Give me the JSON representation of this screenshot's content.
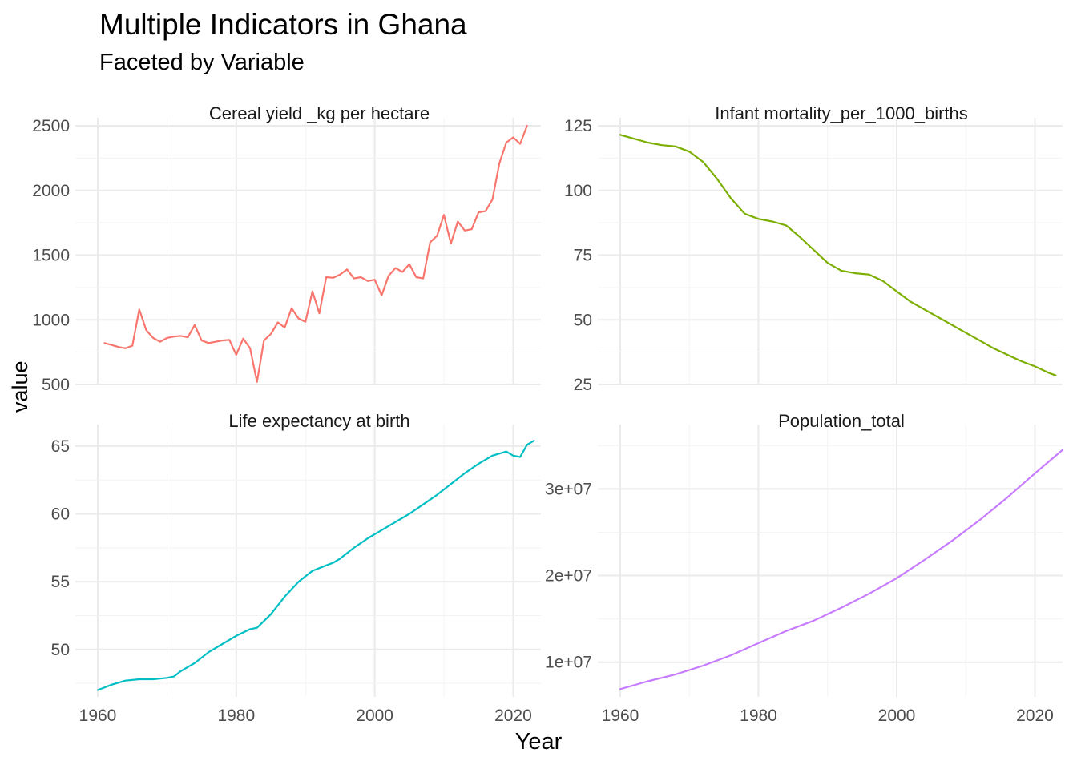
{
  "title": "Multiple Indicators in Ghana",
  "subtitle": "Faceted by Variable",
  "xlabel": "Year",
  "ylabel": "value",
  "chart_data": [
    {
      "type": "line",
      "title": "Cereal yield _kg per hectare",
      "color": "#F8766D",
      "xlim": [
        1960,
        2024
      ],
      "ylim": [
        500,
        2500
      ],
      "xticks": [
        "1960",
        "1980",
        "2000",
        "2020"
      ],
      "yticks": [
        "500",
        "1000",
        "1500",
        "2000",
        "2500"
      ],
      "x": [
        1961,
        1962,
        1963,
        1964,
        1965,
        1966,
        1967,
        1968,
        1969,
        1970,
        1971,
        1972,
        1973,
        1974,
        1975,
        1976,
        1977,
        1978,
        1979,
        1980,
        1981,
        1982,
        1983,
        1984,
        1985,
        1986,
        1987,
        1988,
        1989,
        1990,
        1991,
        1992,
        1993,
        1994,
        1995,
        1996,
        1997,
        1998,
        1999,
        2000,
        2001,
        2002,
        2003,
        2004,
        2005,
        2006,
        2007,
        2008,
        2009,
        2010,
        2011,
        2012,
        2013,
        2014,
        2015,
        2016,
        2017,
        2018,
        2019,
        2020,
        2021,
        2022
      ],
      "y": [
        820,
        805,
        790,
        780,
        800,
        1080,
        920,
        860,
        830,
        860,
        870,
        875,
        865,
        960,
        840,
        820,
        830,
        840,
        845,
        730,
        855,
        780,
        520,
        840,
        890,
        980,
        940,
        1090,
        1010,
        985,
        1220,
        1050,
        1330,
        1325,
        1350,
        1390,
        1320,
        1330,
        1300,
        1310,
        1190,
        1340,
        1400,
        1370,
        1430,
        1330,
        1320,
        1600,
        1650,
        1810,
        1590,
        1760,
        1690,
        1700,
        1830,
        1840,
        1930,
        2210,
        2370,
        2410,
        2360,
        2500
      ]
    },
    {
      "type": "line",
      "title": "Infant mortality_per_1000_births",
      "color": "#7CAE00",
      "xlim": [
        1960,
        2024
      ],
      "ylim": [
        25,
        125
      ],
      "xticks": [
        "1960",
        "1980",
        "2000",
        "2020"
      ],
      "yticks": [
        "25",
        "50",
        "75",
        "100",
        "125"
      ],
      "x": [
        1960,
        1962,
        1964,
        1966,
        1968,
        1970,
        1972,
        1974,
        1976,
        1978,
        1980,
        1982,
        1984,
        1986,
        1988,
        1990,
        1992,
        1994,
        1996,
        1998,
        2000,
        2002,
        2004,
        2006,
        2008,
        2010,
        2012,
        2014,
        2016,
        2018,
        2020,
        2022,
        2023
      ],
      "y": [
        121.5,
        120,
        118.5,
        117.5,
        117,
        115,
        111,
        104.5,
        97,
        91,
        89,
        88,
        86.5,
        82,
        77,
        72,
        69,
        68,
        67.5,
        65,
        61,
        57,
        54,
        51,
        48,
        45,
        42,
        39,
        36.5,
        34,
        32,
        29.5,
        28.5
      ]
    },
    {
      "type": "line",
      "title": "Life expectancy at birth",
      "color": "#00BFC4",
      "xlim": [
        1960,
        2024
      ],
      "ylim": [
        46.5,
        66
      ],
      "xticks": [
        "1960",
        "1980",
        "2000",
        "2020"
      ],
      "yticks": [
        "50",
        "55",
        "60",
        "65"
      ],
      "x": [
        1960,
        1962,
        1964,
        1966,
        1968,
        1970,
        1971,
        1972,
        1974,
        1976,
        1978,
        1980,
        1982,
        1983,
        1985,
        1987,
        1989,
        1991,
        1993,
        1994,
        1995,
        1997,
        1999,
        2001,
        2003,
        2005,
        2007,
        2009,
        2011,
        2013,
        2015,
        2017,
        2019,
        2020,
        2021,
        2022,
        2023
      ],
      "y": [
        47.0,
        47.4,
        47.7,
        47.8,
        47.8,
        47.9,
        48.0,
        48.4,
        49.0,
        49.8,
        50.4,
        51.0,
        51.5,
        51.6,
        52.6,
        53.9,
        55.0,
        55.8,
        56.2,
        56.4,
        56.7,
        57.5,
        58.2,
        58.8,
        59.4,
        60.0,
        60.7,
        61.4,
        62.2,
        63.0,
        63.7,
        64.3,
        64.6,
        64.3,
        64.2,
        65.1,
        65.4
      ]
    },
    {
      "type": "line",
      "title": "Population_total",
      "color": "#C77CFF",
      "xlim": [
        1960,
        2024
      ],
      "ylim": [
        6000000,
        36500000
      ],
      "xticks": [
        "1960",
        "1980",
        "2000",
        "2020"
      ],
      "yticks": [
        "1e+07",
        "2e+07",
        "3e+07"
      ],
      "x": [
        1960,
        1964,
        1968,
        1972,
        1976,
        1980,
        1984,
        1988,
        1992,
        1996,
        2000,
        2004,
        2008,
        2012,
        2016,
        2020,
        2024
      ],
      "y": [
        6900000,
        7800000,
        8600000,
        9600000,
        10800000,
        12200000,
        13600000,
        14800000,
        16300000,
        17900000,
        19700000,
        21800000,
        24000000,
        26400000,
        29000000,
        31800000,
        34500000
      ]
    }
  ]
}
